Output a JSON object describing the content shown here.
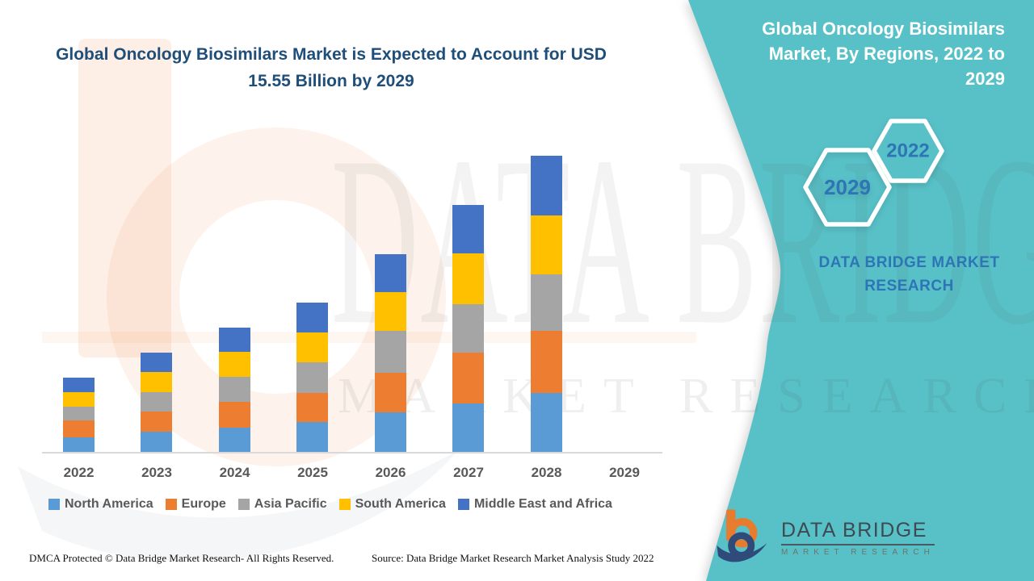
{
  "header": {
    "title": "Global Oncology Biosimilars Market is Expected to Account for USD 15.55 Billion by 2029",
    "title_color": "#1F4E79"
  },
  "side_panel": {
    "title": "Global Oncology Biosimilars Market, By Regions, 2022 to 2029",
    "accent_color": "#58C1C7",
    "text_blue": "#2E75B6",
    "badges": [
      {
        "label": "2029"
      },
      {
        "label": "2022"
      }
    ],
    "brand_text": "DATA BRIDGE MARKET RESEARCH"
  },
  "chart_data": {
    "type": "bar",
    "stacked": true,
    "title": "Global Oncology Biosimilars Market, By Regions, 2022 to 2029",
    "xlabel": "",
    "ylabel": "",
    "unit": "USD Billion",
    "values_estimated": true,
    "grid": false,
    "y_axis_shown": false,
    "legend_position": "bottom",
    "categories": [
      "2022",
      "2023",
      "2024",
      "2025",
      "2026",
      "2027",
      "2028",
      "2029"
    ],
    "series": [
      {
        "name": "North America",
        "color": "#5B9BD5",
        "values": [
          0.61,
          0.87,
          1.04,
          1.27,
          1.71,
          2.09,
          2.54,
          null
        ]
      },
      {
        "name": "Europe",
        "color": "#ED7D31",
        "values": [
          0.73,
          0.87,
          1.1,
          1.27,
          1.7,
          2.19,
          2.66,
          null
        ]
      },
      {
        "name": "Asia Pacific",
        "color": "#A5A5A5",
        "values": [
          0.62,
          0.82,
          1.08,
          1.31,
          1.79,
          2.06,
          2.43,
          null
        ]
      },
      {
        "name": "South America",
        "color": "#FFC000",
        "values": [
          0.61,
          0.86,
          1.07,
          1.3,
          1.68,
          2.2,
          2.54,
          null
        ]
      },
      {
        "name": "Middle East and Africa",
        "color": "#4472C4",
        "values": [
          0.61,
          0.84,
          1.04,
          1.26,
          1.62,
          2.1,
          2.58,
          null
        ]
      }
    ],
    "totals": [
      3.18,
      4.26,
      5.33,
      6.41,
      8.5,
      10.64,
      12.75,
      null
    ],
    "note": "No bar is drawn for 2029"
  },
  "watermark": {
    "line1": "DATA BRIDGE",
    "line2": "MARKET RESEARCH"
  },
  "logo": {
    "name": "DATA BRIDGE",
    "subtitle": "MARKET RESEARCH"
  },
  "footer": {
    "left": "DMCA Protected © Data Bridge Market Research- All Rights Reserved.",
    "right": "Source: Data Bridge Market Research Market Analysis Study 2022"
  }
}
